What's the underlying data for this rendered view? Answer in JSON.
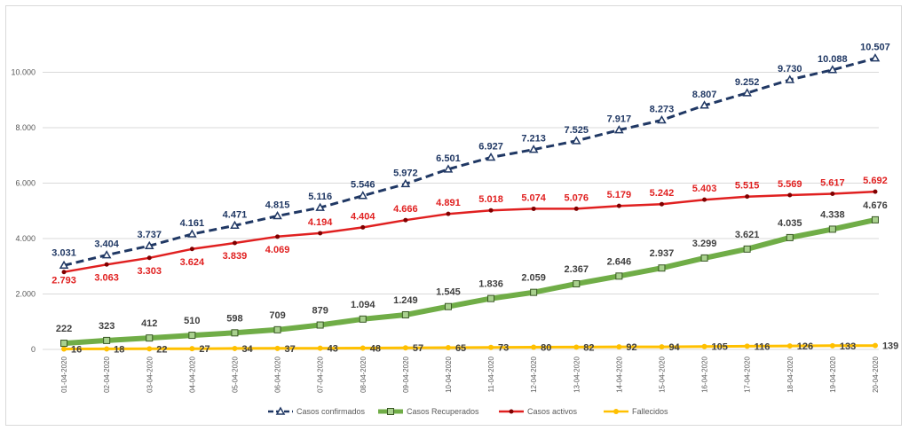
{
  "chart_data": {
    "type": "line",
    "title": "",
    "xlabel": "",
    "ylabel": "",
    "ylim": [
      0,
      12000
    ],
    "y_ticks": [
      "0",
      "2.000",
      "4.000",
      "6.000",
      "8.000",
      "10.000"
    ],
    "y_tick_values": [
      0,
      2000,
      4000,
      6000,
      8000,
      10000
    ],
    "grid": true,
    "legend_position": "bottom",
    "categories": [
      "01-04-2020",
      "02-04-2020",
      "03-04-2020",
      "04-04-2020",
      "05-04-2020",
      "06-04-2020",
      "07-04-2020",
      "08-04-2020",
      "09-04-2020",
      "10-04-2020",
      "11-04-2020",
      "12-04-2020",
      "13-04-2020",
      "14-04-2020",
      "15-04-2020",
      "16-04-2020",
      "17-04-2020",
      "18-04-2020",
      "19-04-2020",
      "20-04-2020"
    ],
    "series": [
      {
        "name": "Casos confirmados",
        "color": "#203864",
        "label_color": "#203864",
        "style": "dashed",
        "marker": "triangle",
        "values": [
          3031,
          3404,
          3737,
          4161,
          4471,
          4815,
          5116,
          5546,
          5972,
          6501,
          6927,
          7213,
          7525,
          7917,
          8273,
          8807,
          9252,
          9730,
          10088,
          10507
        ],
        "labels": [
          "3.031",
          "3.404",
          "3.737",
          "4.161",
          "4.471",
          "4.815",
          "5.116",
          "5.546",
          "5.972",
          "6.501",
          "6.927",
          "7.213",
          "7.525",
          "7.917",
          "8.273",
          "8.807",
          "9.252",
          "9.730",
          "10.088",
          "10.507"
        ]
      },
      {
        "name": "Casos Recuperados",
        "color": "#70ad47",
        "label_color": "#404040",
        "style": "thick",
        "marker": "square",
        "values": [
          222,
          323,
          412,
          510,
          598,
          709,
          879,
          1094,
          1249,
          1545,
          1836,
          2059,
          2367,
          2646,
          2937,
          3299,
          3621,
          4035,
          4338,
          4676
        ],
        "labels": [
          "222",
          "323",
          "412",
          "510",
          "598",
          "709",
          "879",
          "1.094",
          "1.249",
          "1.545",
          "1.836",
          "2.059",
          "2.367",
          "2.646",
          "2.937",
          "3.299",
          "3.621",
          "4.035",
          "4.338",
          "4.676"
        ]
      },
      {
        "name": "Casos activos",
        "color": "#e02020",
        "label_color": "#e02020",
        "style": "solid",
        "marker": "dot",
        "values": [
          2793,
          3063,
          3303,
          3624,
          3839,
          4069,
          4194,
          4404,
          4666,
          4891,
          5018,
          5074,
          5076,
          5179,
          5242,
          5403,
          5515,
          5569,
          5617,
          5692
        ],
        "labels": [
          "2.793",
          "3.063",
          "3.303",
          "3.624",
          "3.839",
          "4.069",
          "4.194",
          "4.404",
          "4.666",
          "4.891",
          "5.018",
          "5.074",
          "5.076",
          "5.179",
          "5.242",
          "5.403",
          "5.515",
          "5.569",
          "5.617",
          "5.692"
        ]
      },
      {
        "name": "Fallecidos",
        "color": "#ffc000",
        "label_color": "#404040",
        "style": "solid",
        "marker": "circle",
        "values": [
          16,
          18,
          22,
          27,
          34,
          37,
          43,
          48,
          57,
          65,
          73,
          80,
          82,
          92,
          94,
          105,
          116,
          126,
          133,
          139
        ],
        "labels": [
          "16",
          "18",
          "22",
          "27",
          "34",
          "37",
          "43",
          "48",
          "57",
          "65",
          "73",
          "80",
          "82",
          "92",
          "94",
          "105",
          "116",
          "126",
          "133",
          "139"
        ]
      }
    ]
  }
}
